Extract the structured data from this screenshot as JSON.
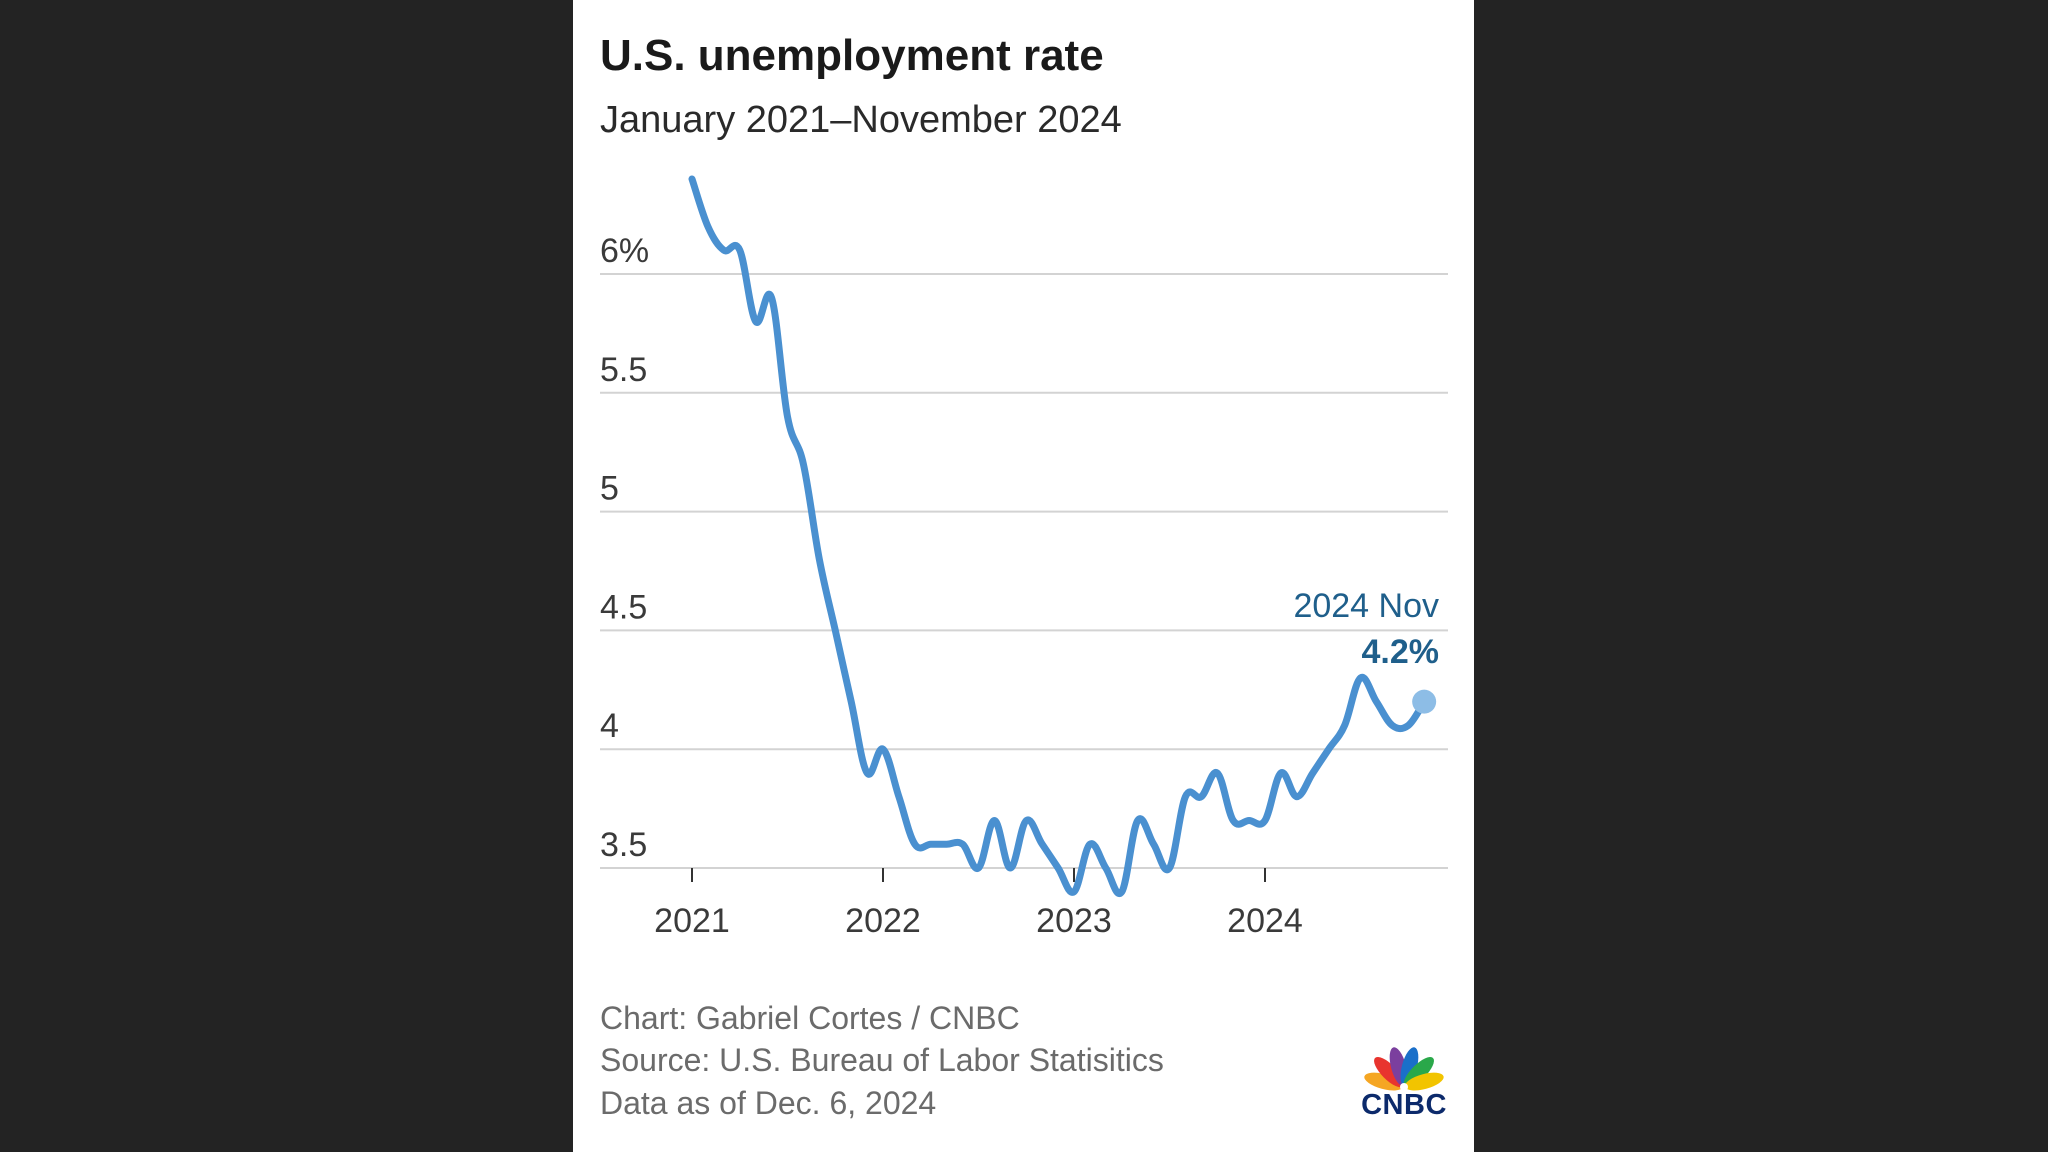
{
  "chart_data": {
    "type": "line",
    "title": "U.S. unemployment rate",
    "subtitle": "January 2021–November 2024",
    "xlabel": "",
    "ylabel": "",
    "ylim": [
      3.4,
      6.3
    ],
    "y_ticks": [
      {
        "value": 3.5,
        "label": "3.5"
      },
      {
        "value": 4,
        "label": "4"
      },
      {
        "value": 4.5,
        "label": "4.5"
      },
      {
        "value": 5,
        "label": "5"
      },
      {
        "value": 5.5,
        "label": "5.5"
      },
      {
        "value": 6,
        "label": "6%"
      }
    ],
    "x_ticks": [
      {
        "value": 2021,
        "label": "2021"
      },
      {
        "value": 2022,
        "label": "2022"
      },
      {
        "value": 2023,
        "label": "2023"
      },
      {
        "value": 2024,
        "label": "2024"
      }
    ],
    "grid": true,
    "series": [
      {
        "name": "U.S. unemployment rate",
        "color": "#4a90d0",
        "start": "2021-01",
        "values": [
          6.4,
          6.2,
          6.1,
          6.1,
          5.8,
          5.9,
          5.4,
          5.2,
          4.8,
          4.5,
          4.2,
          3.9,
          4.0,
          3.8,
          3.6,
          3.6,
          3.6,
          3.6,
          3.5,
          3.7,
          3.5,
          3.7,
          3.6,
          3.5,
          3.4,
          3.6,
          3.5,
          3.4,
          3.7,
          3.6,
          3.5,
          3.8,
          3.8,
          3.9,
          3.7,
          3.7,
          3.7,
          3.9,
          3.8,
          3.9,
          4.0,
          4.1,
          4.3,
          4.2,
          4.1,
          4.1,
          4.2
        ]
      }
    ],
    "annotation": {
      "date_label": "2024 Nov",
      "value_label": "4.2%",
      "marker_color": "#8dbde6"
    }
  },
  "footer": {
    "credit": "Chart: Gabriel Cortes / CNBC",
    "source": "Source: U.S. Bureau of Labor Statisitics",
    "date": "Data as of Dec. 6, 2024"
  },
  "logo": {
    "text": "CNBC",
    "petal_colors": [
      "#f5a623",
      "#e8342e",
      "#7b3f9e",
      "#1a6fc9",
      "#2aa84a",
      "#f2c400"
    ]
  }
}
